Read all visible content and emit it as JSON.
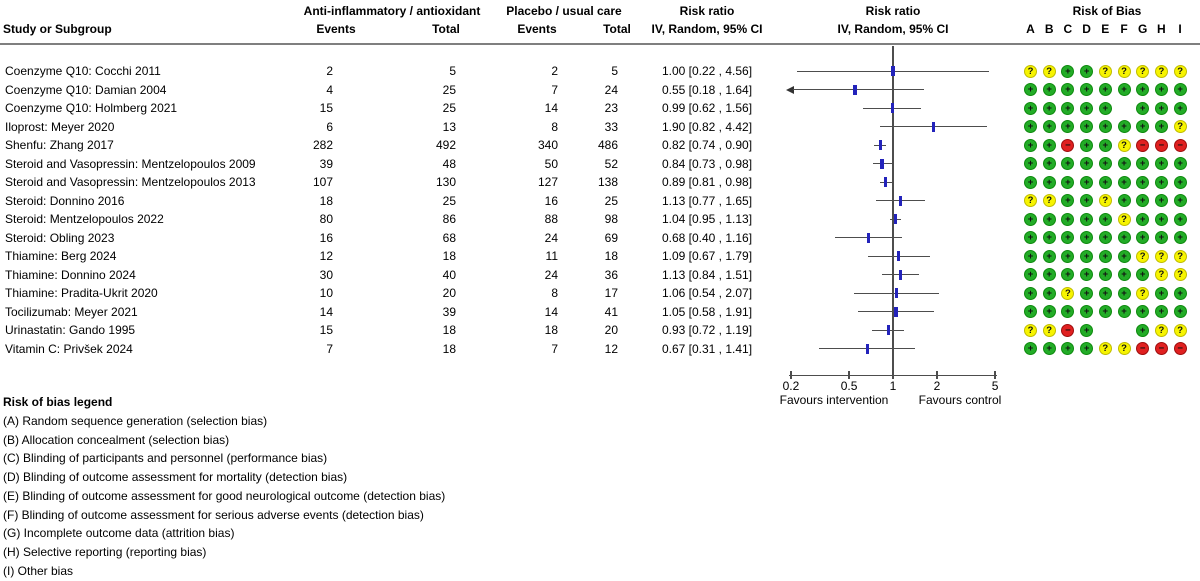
{
  "header": {
    "study_col": "Study or Subgroup",
    "group1": "Anti-inflammatory / antioxidant",
    "group2": "Placebo / usual care",
    "events1": "Events",
    "total1": "Total",
    "events2": "Events",
    "total2": "Total",
    "rr_text_title": "Risk ratio",
    "rr_text_sub": "IV, Random, 95% CI",
    "rr_plot_title": "Risk ratio",
    "rr_plot_sub": "IV, Random, 95% CI",
    "rob_title": "Risk of Bias",
    "rob_cols": [
      "A",
      "B",
      "C",
      "D",
      "E",
      "F",
      "G",
      "H",
      "I"
    ]
  },
  "chart_data": {
    "type": "forest",
    "effect_measure": "Risk ratio, IV, Random, 95% CI",
    "x_scale": "log",
    "x_ticks": [
      0.2,
      0.5,
      1,
      2,
      5
    ],
    "x_range": [
      0.2,
      5
    ],
    "favours_left": "Favours intervention",
    "favours_right": "Favours control",
    "studies": [
      {
        "name": "Coenzyme Q10: Cocchi 2011",
        "e1": "2",
        "t1": "5",
        "e2": "2",
        "t2": "5",
        "rr": 1.0,
        "lo": 0.22,
        "hi": 4.56,
        "rr_text": "1.00 [0.22 , 4.56]",
        "rob": [
          "?",
          "?",
          "+",
          "+",
          "?",
          "?",
          "?",
          "?",
          "?"
        ]
      },
      {
        "name": "Coenzyme Q10: Damian 2004",
        "e1": "4",
        "t1": "25",
        "e2": "7",
        "t2": "24",
        "rr": 0.55,
        "lo": 0.18,
        "hi": 1.64,
        "rr_text": "0.55 [0.18 , 1.64]",
        "rob": [
          "+",
          "+",
          "+",
          "+",
          "+",
          "+",
          "+",
          "+",
          "+"
        ]
      },
      {
        "name": "Coenzyme Q10: Holmberg 2021",
        "e1": "15",
        "t1": "25",
        "e2": "14",
        "t2": "23",
        "rr": 0.99,
        "lo": 0.62,
        "hi": 1.56,
        "rr_text": "0.99 [0.62 , 1.56]",
        "rob": [
          "+",
          "+",
          "+",
          "+",
          "+",
          "",
          "+",
          "+",
          "+"
        ]
      },
      {
        "name": "Iloprost: Meyer 2020",
        "e1": "6",
        "t1": "13",
        "e2": "8",
        "t2": "33",
        "rr": 1.9,
        "lo": 0.82,
        "hi": 4.42,
        "rr_text": "1.90 [0.82 , 4.42]",
        "rob": [
          "+",
          "+",
          "+",
          "+",
          "+",
          "+",
          "+",
          "+",
          "?"
        ]
      },
      {
        "name": "Shenfu: Zhang 2017",
        "e1": "282",
        "t1": "492",
        "e2": "340",
        "t2": "486",
        "rr": 0.82,
        "lo": 0.74,
        "hi": 0.9,
        "rr_text": "0.82 [0.74 , 0.90]",
        "rob": [
          "+",
          "+",
          "-",
          "+",
          "+",
          "?",
          "-",
          "-",
          "-"
        ]
      },
      {
        "name": "Steroid and Vasopressin: Mentzelopoulos 2009",
        "e1": "39",
        "t1": "48",
        "e2": "50",
        "t2": "52",
        "rr": 0.84,
        "lo": 0.73,
        "hi": 0.98,
        "rr_text": "0.84 [0.73 , 0.98]",
        "rob": [
          "+",
          "+",
          "+",
          "+",
          "+",
          "+",
          "+",
          "+",
          "+"
        ]
      },
      {
        "name": "Steroid and Vasopressin: Mentzelopoulos 2013",
        "e1": "107",
        "t1": "130",
        "e2": "127",
        "t2": "138",
        "rr": 0.89,
        "lo": 0.81,
        "hi": 0.98,
        "rr_text": "0.89 [0.81 , 0.98]",
        "rob": [
          "+",
          "+",
          "+",
          "+",
          "+",
          "+",
          "+",
          "+",
          "+"
        ]
      },
      {
        "name": "Steroid: Donnino 2016",
        "e1": "18",
        "t1": "25",
        "e2": "16",
        "t2": "25",
        "rr": 1.13,
        "lo": 0.77,
        "hi": 1.65,
        "rr_text": "1.13 [0.77 , 1.65]",
        "rob": [
          "?",
          "?",
          "+",
          "+",
          "?",
          "+",
          "+",
          "+",
          "+"
        ]
      },
      {
        "name": "Steroid: Mentzelopoulos 2022",
        "e1": "80",
        "t1": "86",
        "e2": "88",
        "t2": "98",
        "rr": 1.04,
        "lo": 0.95,
        "hi": 1.13,
        "rr_text": "1.04 [0.95 , 1.13]",
        "rob": [
          "+",
          "+",
          "+",
          "+",
          "+",
          "?",
          "+",
          "+",
          "+"
        ]
      },
      {
        "name": "Steroid: Obling 2023",
        "e1": "16",
        "t1": "68",
        "e2": "24",
        "t2": "69",
        "rr": 0.68,
        "lo": 0.4,
        "hi": 1.16,
        "rr_text": "0.68 [0.40 , 1.16]",
        "rob": [
          "+",
          "+",
          "+",
          "+",
          "+",
          "+",
          "+",
          "+",
          "+"
        ]
      },
      {
        "name": "Thiamine: Berg 2024",
        "e1": "12",
        "t1": "18",
        "e2": "11",
        "t2": "18",
        "rr": 1.09,
        "lo": 0.67,
        "hi": 1.79,
        "rr_text": "1.09 [0.67 , 1.79]",
        "rob": [
          "+",
          "+",
          "+",
          "+",
          "+",
          "+",
          "?",
          "?",
          "?"
        ]
      },
      {
        "name": "Thiamine: Donnino 2024",
        "e1": "30",
        "t1": "40",
        "e2": "24",
        "t2": "36",
        "rr": 1.13,
        "lo": 0.84,
        "hi": 1.51,
        "rr_text": "1.13 [0.84 , 1.51]",
        "rob": [
          "+",
          "+",
          "+",
          "+",
          "+",
          "+",
          "+",
          "?",
          "?"
        ]
      },
      {
        "name": "Thiamine: Pradita-Ukrit 2020",
        "e1": "10",
        "t1": "20",
        "e2": "8",
        "t2": "17",
        "rr": 1.06,
        "lo": 0.54,
        "hi": 2.07,
        "rr_text": "1.06 [0.54 , 2.07]",
        "rob": [
          "+",
          "+",
          "?",
          "+",
          "+",
          "+",
          "?",
          "+",
          "+"
        ]
      },
      {
        "name": "Tocilizumab: Meyer 2021",
        "e1": "14",
        "t1": "39",
        "e2": "14",
        "t2": "41",
        "rr": 1.05,
        "lo": 0.58,
        "hi": 1.91,
        "rr_text": "1.05 [0.58 , 1.91]",
        "rob": [
          "+",
          "+",
          "+",
          "+",
          "+",
          "+",
          "+",
          "+",
          "+"
        ]
      },
      {
        "name": "Urinastatin: Gando 1995",
        "e1": "15",
        "t1": "18",
        "e2": "18",
        "t2": "20",
        "rr": 0.93,
        "lo": 0.72,
        "hi": 1.19,
        "rr_text": "0.93 [0.72 , 1.19]",
        "rob": [
          "?",
          "?",
          "-",
          "+",
          "",
          "",
          "+",
          "?",
          "?"
        ]
      },
      {
        "name": "Vitamin C: Privšek 2024",
        "e1": "7",
        "t1": "18",
        "e2": "7",
        "t2": "12",
        "rr": 0.67,
        "lo": 0.31,
        "hi": 1.41,
        "rr_text": "0.67 [0.31 , 1.41]",
        "rob": [
          "+",
          "+",
          "+",
          "+",
          "?",
          "?",
          "-",
          "-",
          "-"
        ]
      }
    ]
  },
  "rob_legend": {
    "title": "Risk of bias legend",
    "items": [
      "(A) Random sequence generation (selection bias)",
      "(B) Allocation concealment (selection bias)",
      "(C) Blinding of participants and personnel (performance bias)",
      "(D) Blinding of outcome assessment for mortality (detection bias)",
      "(E) Blinding of outcome assessment for good neurological outcome (detection bias)",
      "(F) Blinding of outcome assessment for serious adverse events (detection bias)",
      "(G) Incomplete outcome data (attrition bias)",
      "(H) Selective reporting (reporting bias)",
      "(I) Other bias"
    ]
  },
  "colors": {
    "rob_low": "#23AC27",
    "rob_unclear": "#F7F400",
    "rob_high": "#E02020",
    "marker": "#2323bb",
    "line": "#4d4d4d"
  }
}
